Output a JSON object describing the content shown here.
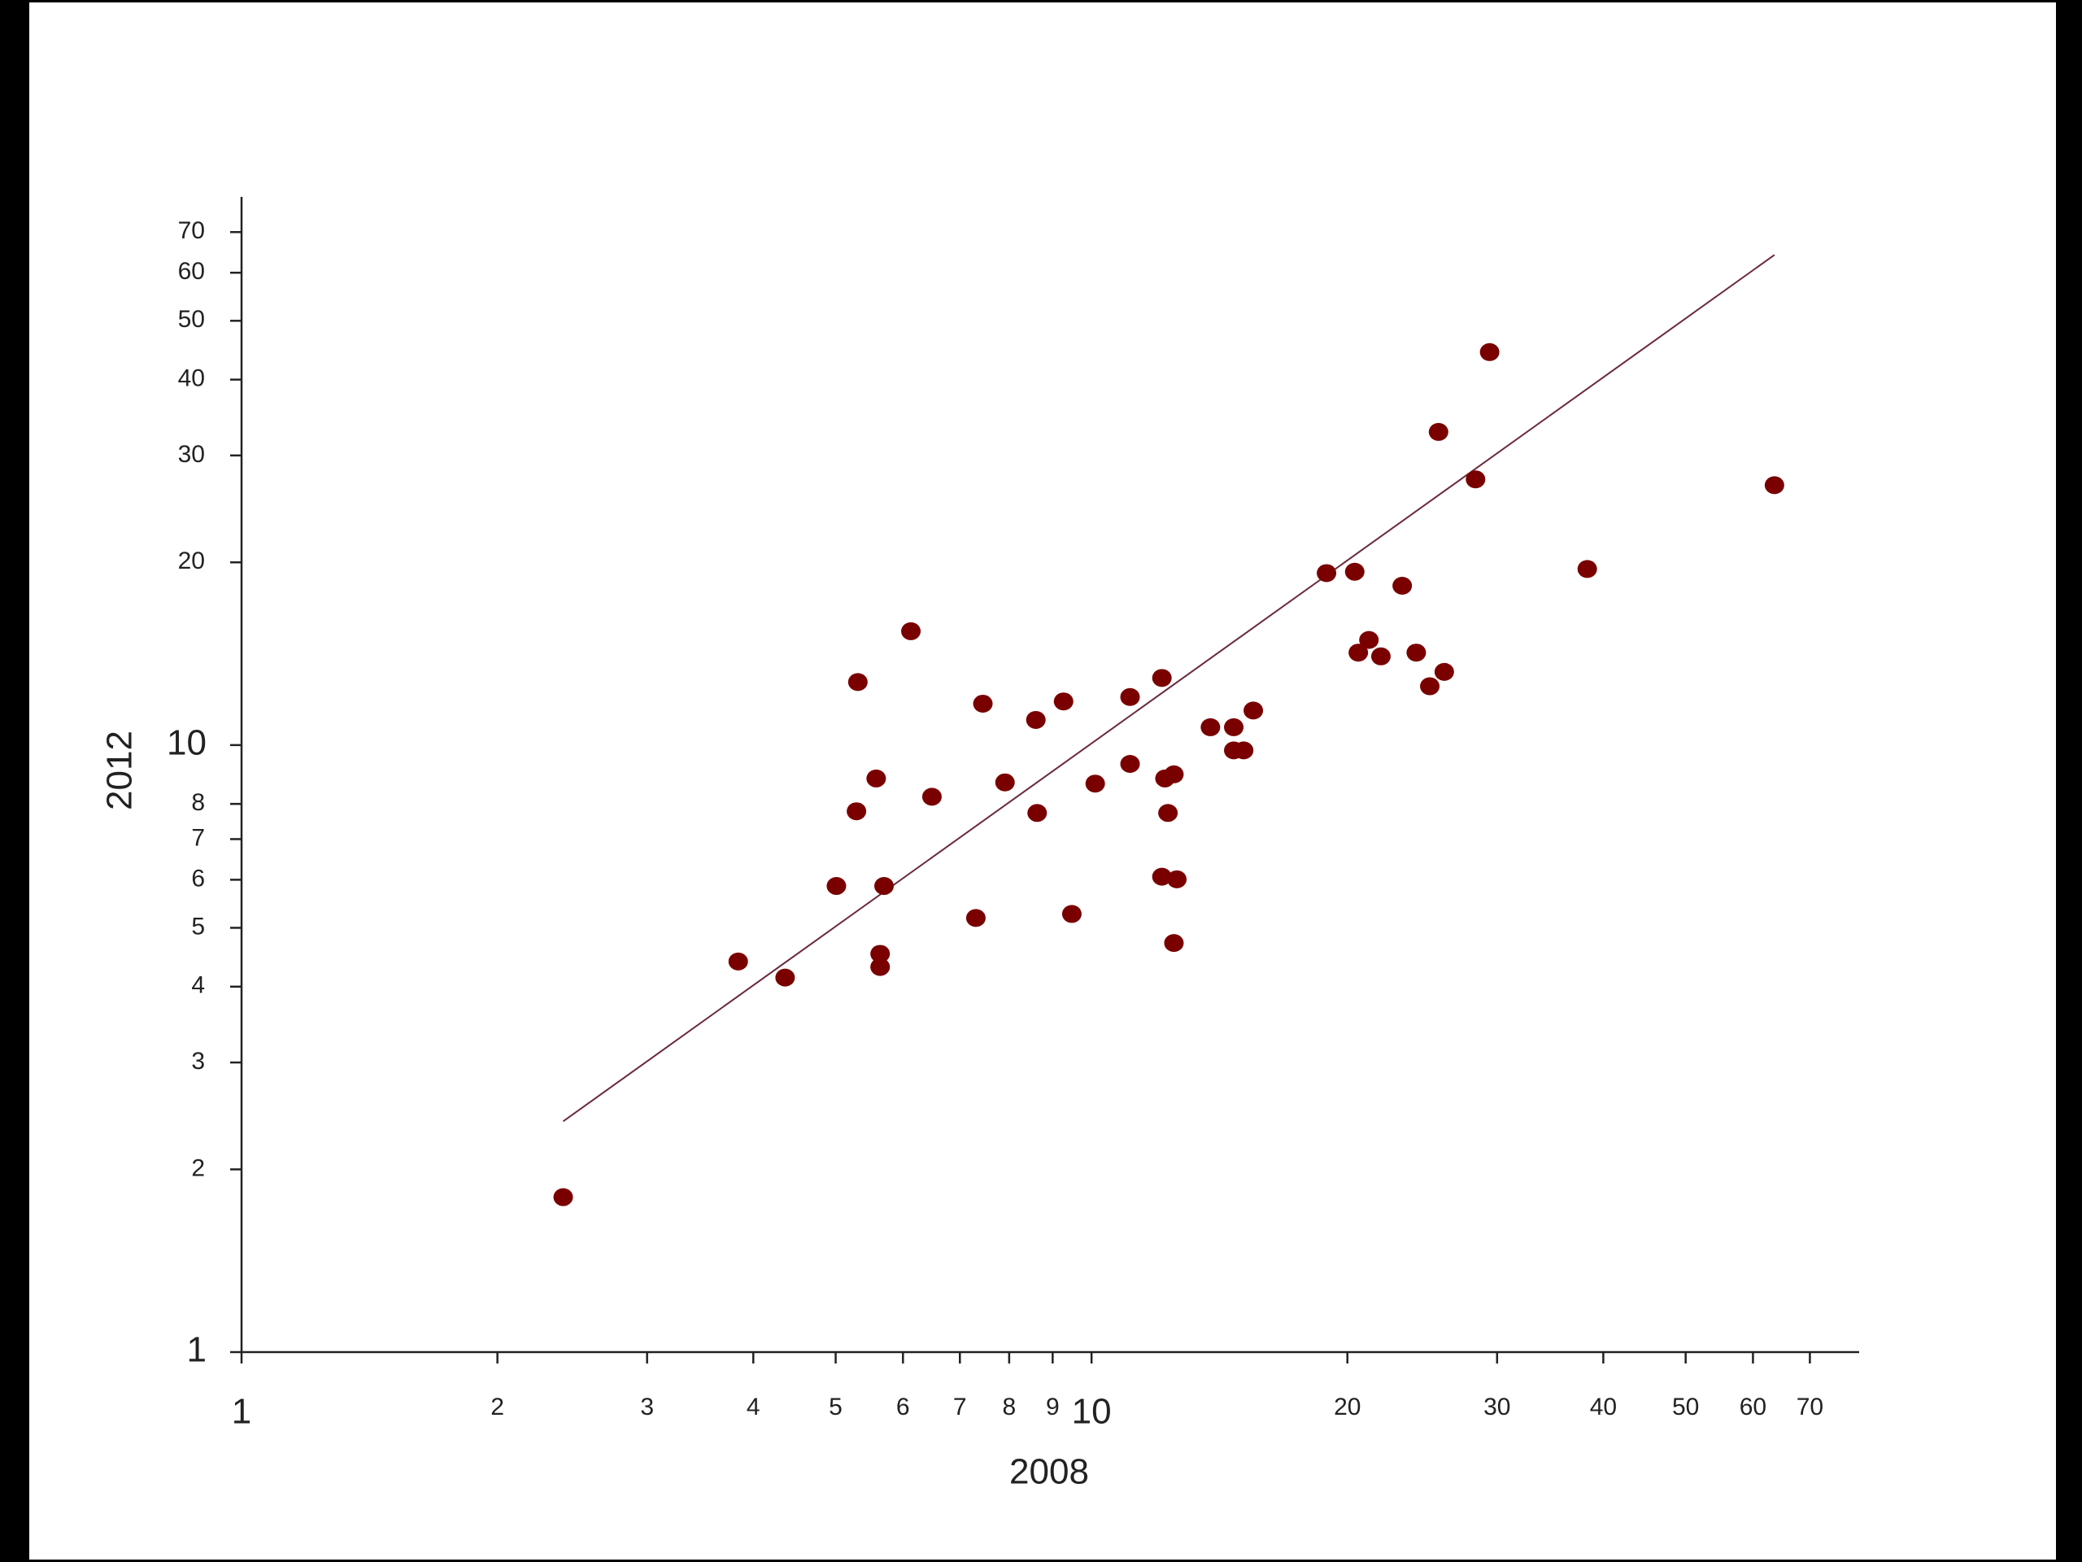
{
  "chart_data": {
    "type": "scatter",
    "x_label": "2008",
    "y_label": "2012",
    "xscale": "log",
    "yscale": "log",
    "xlim": [
      1,
      80
    ],
    "ylim": [
      1,
      80
    ],
    "xticks": [
      1,
      2,
      3,
      4,
      5,
      6,
      7,
      8,
      9,
      10,
      20,
      30,
      40,
      50,
      60,
      70
    ],
    "yticks": [
      1,
      2,
      3,
      4,
      5,
      6,
      7,
      8,
      10,
      20,
      30,
      40,
      50,
      60,
      70
    ],
    "series": [
      {
        "color": "#7a0000",
        "x": [
          2.39,
          3.84,
          4.36,
          5.01,
          5.29,
          5.31,
          5.58,
          5.64,
          5.64,
          5.7,
          6.13,
          6.49,
          7.31,
          7.45,
          7.91,
          8.6,
          8.63,
          9.27,
          9.48,
          10.1,
          11.1,
          11.1,
          12.1,
          12.1,
          12.2,
          12.3,
          12.5,
          12.5,
          12.6,
          13.8,
          14.7,
          14.7,
          15.1,
          15.5,
          18.9,
          20.4,
          20.6,
          21.2,
          21.9,
          23.2,
          24.1,
          25.0,
          25.6,
          26.0,
          28.3,
          29.4,
          38.3,
          63.6
        ],
        "values": [
          1.8,
          4.4,
          4.14,
          5.86,
          7.78,
          12.7,
          8.81,
          4.53,
          4.31,
          5.86,
          15.4,
          8.22,
          5.19,
          11.7,
          8.68,
          11.0,
          7.73,
          11.8,
          5.27,
          8.64,
          12.0,
          9.31,
          12.9,
          6.07,
          8.81,
          7.73,
          8.95,
          4.72,
          6.01,
          10.7,
          10.7,
          9.8,
          9.8,
          11.4,
          19.2,
          19.3,
          14.2,
          14.9,
          14.0,
          18.3,
          14.2,
          12.5,
          32.8,
          13.2,
          27.4,
          44.4,
          19.5,
          26.8
        ]
      }
    ],
    "trend_line": {
      "color": "#6a2a3a",
      "x": [
        2.39,
        63.6
      ],
      "values": [
        2.4,
        64.2
      ]
    }
  }
}
